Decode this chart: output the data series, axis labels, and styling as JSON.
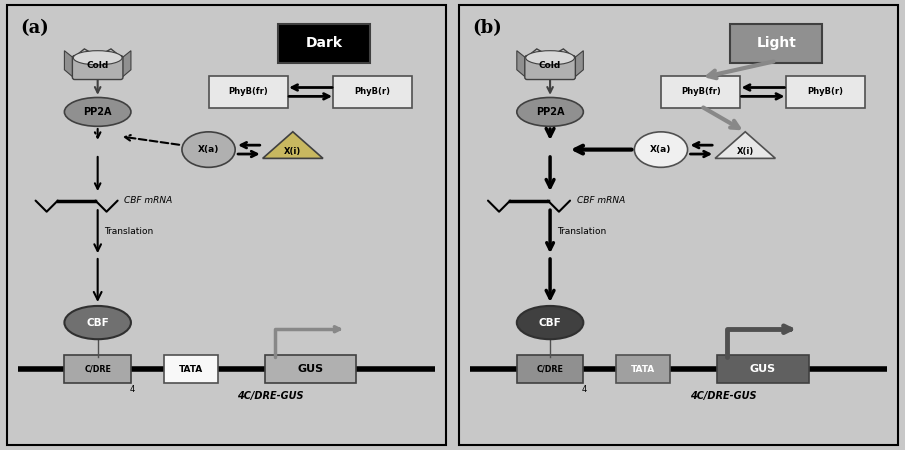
{
  "bg_color": "#c8c8c8",
  "panel_a_label": "(a)",
  "panel_b_label": "(b)",
  "dark_text": "Dark",
  "dark_bg": "#000000",
  "dark_fg": "#ffffff",
  "light_text": "Light",
  "light_bg": "#909090",
  "light_fg": "#ffffff",
  "cold_label": "Cold",
  "pp2a_label": "PP2A",
  "phyfr_label": "PhyB(fr)",
  "phyr_label": "PhyB(r)",
  "xa_label": "X(a)",
  "xi_label": "X(i)",
  "cbf_mrna_label": "CBF mRNA",
  "translation_label": "Translation",
  "cbf_label": "CBF",
  "cdre_label": "C/DRE",
  "tata_label": "TATA",
  "gus_label": "GUS",
  "footer_label": "4C/DRE-GUS",
  "gray_mid": "#a0a0a0",
  "gray_dark": "#606060",
  "gray_light": "#d0d0d0",
  "gray_element": "#b0b0b0"
}
